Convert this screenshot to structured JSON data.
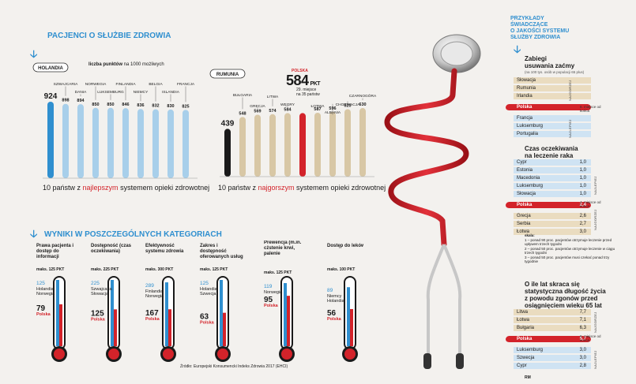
{
  "top_left": {
    "title": "PACJENCI O SŁUŻBIE ZDROWIA",
    "points_label_bold": "liczba punktów",
    "points_label_rest": " na 1000 możliwych",
    "best_caption_pre": "10 państw z ",
    "best_caption_hl": "najlepszym",
    "best_caption_post": " systemem opieki zdrowotnej",
    "worst_caption_pre": "10 państw z ",
    "worst_caption_hl": "najgorszym",
    "worst_caption_post": " systemem opieki zdrowotnej",
    "poland_tag": "POLSKA",
    "poland_score": "584",
    "poland_pkt": "PKT",
    "poland_rank": "29. miejsce",
    "poland_rank2": "na 35 państw"
  },
  "categories_section": {
    "title": "WYNIKI W POSZCZEGÓLNYCH KATEGORIACH",
    "source": "Źródło: Europejski Konsumencki Indeks Zdrowia 2017 (EHCI)"
  },
  "right_panel": {
    "title_l1": "PRZYKŁADY",
    "title_l2": "ŚWIADCZĄCE",
    "title_l3": "O JAKOŚCI SYSTEMU",
    "title_l4": "SŁUŻBY ZDROWIA",
    "s1_title_l1": "Zabiegi",
    "s1_title_l2": "usuwania zaćmy",
    "s1_sub": "(na 100 tys. osób w populacji 65 plus)",
    "s1_group_top": "NAJGORZEJ",
    "s1_group_bot": "NAJLEPIEJ",
    "s1_note": "6. miejsce od końca",
    "s2_title_l1": "Czas oczekiwania",
    "s2_title_l2": "na leczenie raka",
    "s2_group_top": "NAJLEPIEJ",
    "s2_group_bot": "NAJGORZEJ",
    "s2_note": "4. miejsce od końca",
    "scale_title": "skala:",
    "scale_1": "1 – ponad 90 proc. pacjentów otrzymuje leczenie przed upływem trzech tygodni",
    "scale_2": "2 – ponad 50 proc. pacjentów otrzymuje leczenie w ciągu trzech tygodni",
    "scale_3": "3 – ponad 50 proc. pacjentów musi czekać ponad trzy tygodnie",
    "s3_title_l1": "O ile lat skraca się",
    "s3_title_l2": "statystyczna długość życia",
    "s3_title_l3": "z powodu zgonów przed",
    "s3_title_l4": "osiągnięciem wieku 65 lat",
    "s3_group_top": "NAJGORZEJ",
    "s3_group_bot": "NAJLEPIEJ",
    "s3_note": "8. miejsce od końca",
    "cataract_rows": [
      "Słowacja",
      "Rumunia",
      "Irlandia",
      "Polska",
      "Francja",
      "Luksemburg",
      "Portugalia"
    ],
    "cancer_rows": [
      {
        "name": "Cypr",
        "value": "1,0"
      },
      {
        "name": "Estonia",
        "value": "1,0"
      },
      {
        "name": "Macedonia",
        "value": "1,0"
      },
      {
        "name": "Luksemburg",
        "value": "1,0"
      },
      {
        "name": "Słowacja",
        "value": "1,0"
      },
      {
        "name": "Polska",
        "value": "2,4"
      },
      {
        "name": "Grecja",
        "value": "2,6"
      },
      {
        "name": "Serbia",
        "value": "2,7"
      },
      {
        "name": "Łotwa",
        "value": "3,0"
      }
    ],
    "life_rows": [
      {
        "name": "Litwa",
        "value": "7,7"
      },
      {
        "name": "Łotwa",
        "value": "7,1"
      },
      {
        "name": "Bułgaria",
        "value": "6,3"
      },
      {
        "name": "Polska",
        "value": "5,7"
      },
      {
        "name": "Luksemburg",
        "value": "3,0"
      },
      {
        "name": "Szwecja",
        "value": "3,0"
      },
      {
        "name": "Cypr",
        "value": "2,8"
      }
    ]
  },
  "footer": {
    "page_code": "RM"
  },
  "chart_data": [
    {
      "type": "bar",
      "title": "10 państw z najlepszym systemem opieki zdrowotnej",
      "categories": [
        "HOLANDIA",
        "SZWAJCARIA",
        "DANIA",
        "NORWEGIA",
        "LUKSEMBURG",
        "FINLANDIA",
        "NIEMCY",
        "BELGIA",
        "ISLANDIA",
        "FRANCJA"
      ],
      "values": [
        924,
        898,
        894,
        850,
        850,
        846,
        836,
        832,
        830,
        825
      ],
      "ylim": [
        0,
        1000
      ],
      "colors": {
        "first": "#2f8fcf",
        "rest": "#a8cfea"
      }
    },
    {
      "type": "bar",
      "title": "10 państw z najgorszym systemem opieki zdrowotnej",
      "categories": [
        "RUMUNIA",
        "BUŁGARIA",
        "GRECJA",
        "LITWA",
        "WĘGRY",
        "POLSKA",
        "ŁOTWA",
        "ALBANIA",
        "CHORWACJA",
        "CZARNOGÓRA"
      ],
      "values": [
        439,
        548,
        569,
        574,
        584,
        584,
        587,
        596,
        620,
        630
      ],
      "ylim": [
        0,
        1000
      ],
      "colors": {
        "first": "#1a1a1a",
        "highlight": "#d3232a",
        "rest": "#d8c7a5"
      }
    },
    {
      "type": "bar",
      "title": "WYNIKI W POSZCZEGÓLNYCH KATEGORIACH",
      "categories": [
        "Prawa pacjenta i dostęp do informacji",
        "Dostępność (czas oczekiwania)",
        "Efektywność systemu zdrowia",
        "Zakres i dostępność oferowanych usług",
        "Prewencja (m.in. cżstenie krwi, palenie papierosów, alkohol, zdrowie psychiczne)",
        "Dostęp do leków"
      ],
      "max_labels": [
        "maks. 125 PKT",
        "maks. 225 PKT",
        "maks. 300 PKT",
        "maks. 125 PKT",
        "maks. 125 PKT",
        "maks. 100 PKT"
      ],
      "max_values": [
        125,
        225,
        300,
        125,
        125,
        100
      ],
      "series": [
        {
          "name": "Holandia Norwegia",
          "values": [
            125,
            null,
            null,
            null,
            null,
            null
          ]
        },
        {
          "name": "Szwajcaria Słowacja",
          "values": [
            null,
            225,
            null,
            null,
            null,
            null
          ]
        },
        {
          "name": "Finlandia Norwegia",
          "values": [
            null,
            null,
            289,
            null,
            null,
            null
          ]
        },
        {
          "name": "Holandia Szwecja",
          "values": [
            null,
            null,
            null,
            125,
            null,
            null
          ]
        },
        {
          "name": "Norwegia",
          "values": [
            null,
            null,
            null,
            null,
            119,
            null
          ]
        },
        {
          "name": "Niemcy Holandia",
          "values": [
            null,
            null,
            null,
            null,
            null,
            89
          ]
        },
        {
          "name": "Polska",
          "values": [
            79,
            125,
            167,
            63,
            95,
            56
          ]
        }
      ]
    },
    {
      "type": "table",
      "title": "Zabiegi usuwania zaćmy",
      "rows": [
        "Słowacja",
        "Rumunia",
        "Irlandia",
        "Polska",
        "Francja",
        "Luksemburg",
        "Portugalia"
      ]
    },
    {
      "type": "bar",
      "title": "Czas oczekiwania na leczenie raka",
      "categories": [
        "Cypr",
        "Estonia",
        "Macedonia",
        "Luksemburg",
        "Słowacja",
        "Polska",
        "Grecja",
        "Serbia",
        "Łotwa"
      ],
      "values": [
        1.0,
        1.0,
        1.0,
        1.0,
        1.0,
        2.4,
        2.6,
        2.7,
        3.0
      ]
    },
    {
      "type": "bar",
      "title": "O ile lat skraca się statystyczna długość życia z powodu zgonów przed osiągnięciem wieku 65 lat",
      "categories": [
        "Litwa",
        "Łotwa",
        "Bułgaria",
        "Polska",
        "Luksemburg",
        "Szwecja",
        "Cypr"
      ],
      "values": [
        7.7,
        7.1,
        6.3,
        5.7,
        3.0,
        3.0,
        2.8
      ]
    }
  ]
}
